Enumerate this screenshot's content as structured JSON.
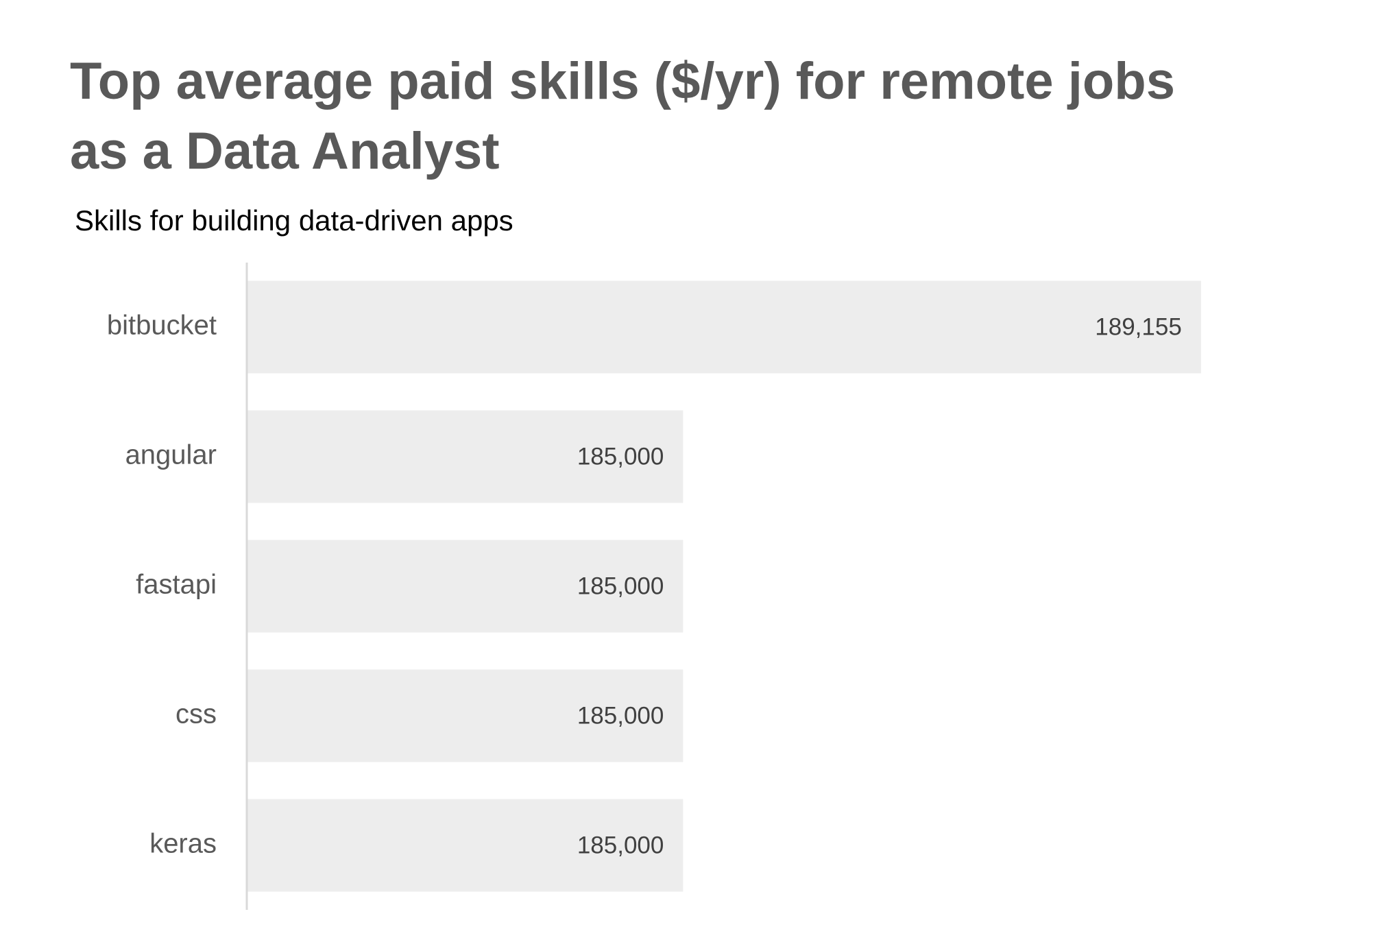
{
  "chart_data": {
    "type": "bar",
    "orientation": "horizontal",
    "title": "Top average paid skills ($/yr) for remote jobs as a Data Analyst",
    "subtitle": "Skills for building data-driven apps",
    "categories": [
      "bitbucket",
      "angular",
      "fastapi",
      "css",
      "keras"
    ],
    "values": [
      189155,
      185000,
      185000,
      185000,
      185000
    ],
    "value_labels": [
      "189,155",
      "185,000",
      "185,000",
      "185,000",
      "185,000"
    ],
    "xlim": [
      181500,
      189640
    ],
    "grid": false,
    "bar_color": "#EDEDED",
    "axis_color": "#D9D9D9"
  }
}
